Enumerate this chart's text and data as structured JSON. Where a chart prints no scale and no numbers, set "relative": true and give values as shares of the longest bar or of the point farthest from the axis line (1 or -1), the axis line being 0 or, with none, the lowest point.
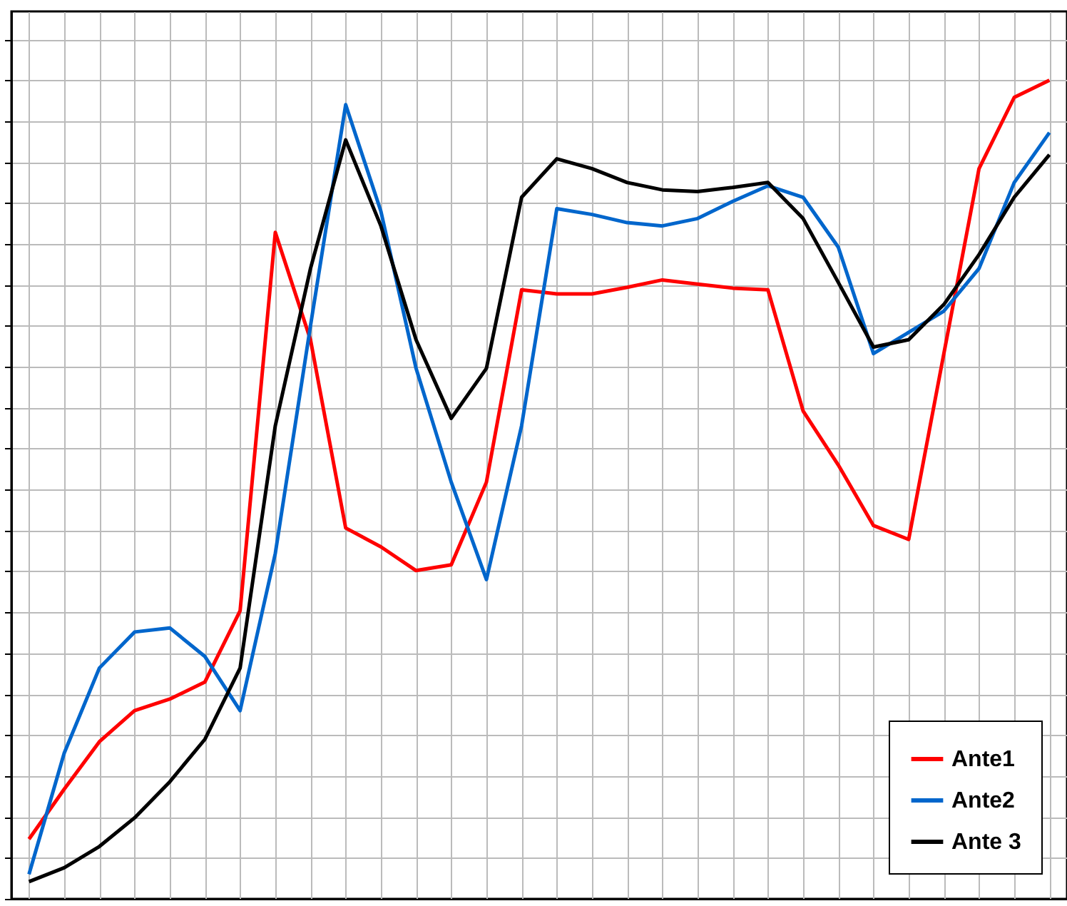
{
  "chart_data": {
    "type": "line",
    "relative": true,
    "categories": [
      null,
      null,
      null,
      null,
      null,
      null,
      null,
      null,
      null,
      null,
      null,
      null,
      null,
      null,
      null,
      null,
      null,
      null,
      null,
      null,
      null,
      null,
      null,
      null,
      null,
      null,
      null,
      null,
      null,
      null
    ],
    "series": [
      {
        "name": "Ante1",
        "color": "#ff0000",
        "values": [
          0.073,
          0.134,
          0.192,
          0.23,
          0.244,
          0.265,
          0.352,
          0.814,
          0.683,
          0.453,
          0.43,
          0.401,
          0.408,
          0.509,
          0.744,
          0.739,
          0.739,
          0.747,
          0.756,
          0.751,
          0.746,
          0.744,
          0.596,
          0.53,
          0.456,
          0.439,
          0.666,
          0.892,
          0.979,
          1
        ]
      },
      {
        "name": "Ante2",
        "color": "#0066cc",
        "values": [
          0.03,
          0.178,
          0.282,
          0.326,
          0.331,
          0.296,
          0.23,
          0.422,
          0.7,
          0.97,
          0.84,
          0.648,
          0.509,
          0.39,
          0.578,
          0.843,
          0.836,
          0.826,
          0.822,
          0.831,
          0.852,
          0.871,
          0.857,
          0.796,
          0.666,
          0.692,
          0.718,
          0.77,
          0.875,
          0.936
        ]
      },
      {
        "name": "Ante 3",
        "color": "#000000",
        "values": [
          0.021,
          0.038,
          0.064,
          0.099,
          0.143,
          0.195,
          0.282,
          0.578,
          0.77,
          0.927,
          0.822,
          0.683,
          0.587,
          0.648,
          0.857,
          0.904,
          0.892,
          0.875,
          0.866,
          0.864,
          0.869,
          0.875,
          0.831,
          0.753,
          0.674,
          0.683,
          0.726,
          0.787,
          0.857,
          0.909
        ]
      }
    ],
    "grid": true,
    "legend": "bottom right",
    "tick_labels": false,
    "line_style": "solid",
    "marker": "none"
  }
}
